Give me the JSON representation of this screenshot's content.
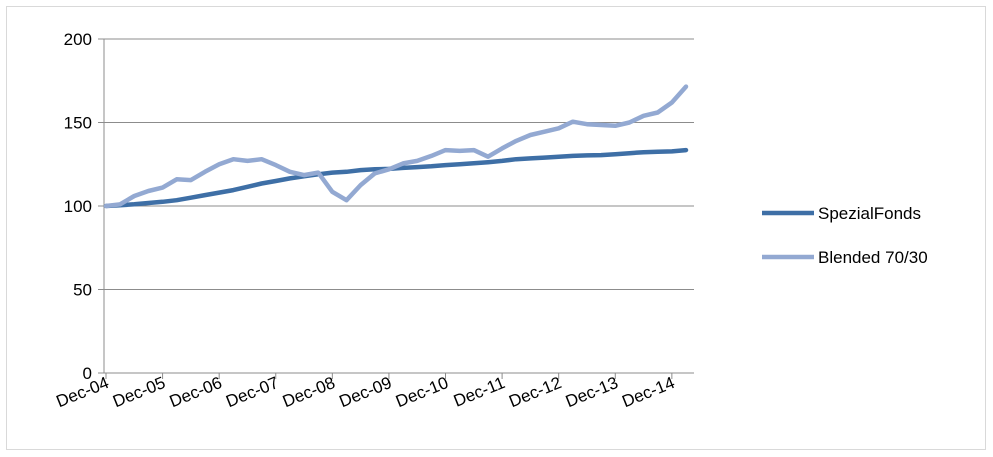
{
  "chart_data": {
    "type": "line",
    "title": "",
    "xlabel": "",
    "ylabel": "",
    "ylim": [
      0,
      200
    ],
    "yticks": [
      0,
      50,
      100,
      150,
      200
    ],
    "grid": true,
    "legend_position": "right",
    "x_tick_labels": [
      "Dec-04",
      "Dec-05",
      "Dec-06",
      "Dec-07",
      "Dec-08",
      "Dec-09",
      "Dec-10",
      "Dec-11",
      "Dec-12",
      "Dec-13",
      "Dec-14"
    ],
    "colors": {
      "SpezialFonds": "#3e6fa6",
      "Blended 70/30": "#93a9d2"
    },
    "series": [
      {
        "name": "SpezialFonds",
        "values": [
          100,
          100.5,
          101,
          101.8,
          102.5,
          103.5,
          105,
          106.5,
          108,
          109.5,
          111.5,
          113.5,
          115,
          116.5,
          117.8,
          119,
          120,
          120.5,
          121.5,
          122,
          122.2,
          122.8,
          123.3,
          123.8,
          124.5,
          125,
          125.6,
          126.2,
          127,
          128,
          128.5,
          129,
          129.5,
          130,
          130.3,
          130.5,
          131,
          131.6,
          132.2,
          132.5,
          132.7,
          133.5
        ]
      },
      {
        "name": "Blended 70/30",
        "values": [
          100,
          101,
          106,
          109,
          111,
          116,
          115.5,
          120.5,
          125,
          128,
          127,
          128,
          124.5,
          120.5,
          118.5,
          120,
          108.5,
          103.5,
          112.5,
          119.5,
          122,
          125.5,
          127,
          130,
          133.5,
          133,
          133.5,
          129.5,
          134.5,
          139,
          142.5,
          144.5,
          146.5,
          150.5,
          149,
          148.5,
          148,
          150,
          154,
          156,
          162,
          171.5
        ]
      }
    ]
  }
}
